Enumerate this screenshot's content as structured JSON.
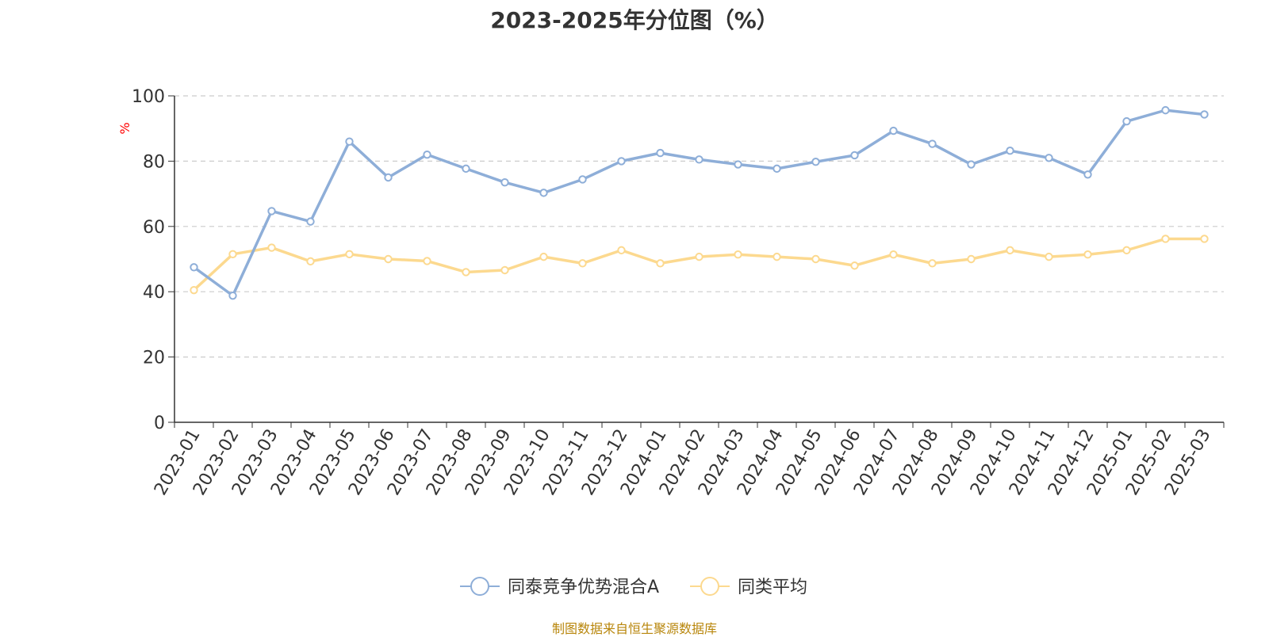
{
  "chart_data": {
    "type": "line",
    "title": "2023-2025年分位图（%）",
    "ylabel": "%",
    "xlabel": "",
    "ylim": [
      0,
      100
    ],
    "yticks": [
      0,
      20,
      40,
      60,
      80,
      100
    ],
    "grid": true,
    "legend_position": "bottom-center",
    "categories": [
      "2023-01",
      "2023-02",
      "2023-03",
      "2023-04",
      "2023-05",
      "2023-06",
      "2023-07",
      "2023-08",
      "2023-09",
      "2023-10",
      "2023-11",
      "2023-12",
      "2024-01",
      "2024-02",
      "2024-03",
      "2024-04",
      "2024-05",
      "2024-06",
      "2024-07",
      "2024-08",
      "2024-09",
      "2024-10",
      "2024-11",
      "2024-12",
      "2025-01",
      "2025-02",
      "2025-03"
    ],
    "series": [
      {
        "name": "同泰竞争优势混合A",
        "color": "#8eaed8",
        "values": [
          47.5,
          38.8,
          64.7,
          61.5,
          86.0,
          75.0,
          82.0,
          77.7,
          73.5,
          70.3,
          74.4,
          80.0,
          82.5,
          80.5,
          79.0,
          77.7,
          79.8,
          81.8,
          89.3,
          85.3,
          79.0,
          83.2,
          81.0,
          75.9,
          92.2,
          95.6,
          94.3
        ]
      },
      {
        "name": "同类平均",
        "color": "#fcd98f",
        "values": [
          40.5,
          51.5,
          53.5,
          49.3,
          51.5,
          50.0,
          49.4,
          46.0,
          46.6,
          50.7,
          48.7,
          52.7,
          48.7,
          50.7,
          51.4,
          50.7,
          50.0,
          48.0,
          51.4,
          48.7,
          50.0,
          52.7,
          50.7,
          51.4,
          52.7,
          56.2,
          56.2
        ]
      }
    ]
  },
  "footer": {
    "source": "制图数据来自恒生聚源数据库"
  }
}
